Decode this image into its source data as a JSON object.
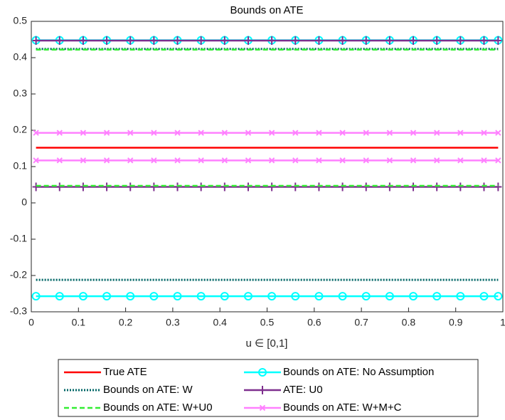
{
  "chart_data": {
    "type": "line",
    "title": "Bounds on ATE",
    "xlabel": "u ∈ [0,1]",
    "x": [
      0.01,
      0.06,
      0.11,
      0.16,
      0.21,
      0.26,
      0.31,
      0.36,
      0.41,
      0.46,
      0.51,
      0.56,
      0.61,
      0.66,
      0.71,
      0.76,
      0.81,
      0.86,
      0.91,
      0.96,
      0.99
    ],
    "xlim": [
      0,
      1
    ],
    "xticks": [
      0,
      0.1,
      0.2,
      0.3,
      0.4,
      0.5,
      0.6,
      0.7,
      0.8,
      0.9,
      1
    ],
    "ylim": [
      -0.3,
      0.5
    ],
    "yticks": [
      -0.3,
      -0.2,
      -0.1,
      0,
      0.1,
      0.2,
      0.3,
      0.4,
      0.5
    ],
    "grid": false,
    "series": [
      {
        "name": "True ATE",
        "color": "#ff0000",
        "linestyle": "solid",
        "marker": "none",
        "values": [
          0.152,
          0.152,
          0.152,
          0.152,
          0.152,
          0.152,
          0.152,
          0.152,
          0.152,
          0.152,
          0.152,
          0.152,
          0.152,
          0.152,
          0.152,
          0.152,
          0.152,
          0.152,
          0.152,
          0.152,
          0.152
        ]
      },
      {
        "name": "Bounds on ATE: No Assumption",
        "color": "#00ffff",
        "linestyle": "solid",
        "marker": "circle",
        "lower": [
          -0.257,
          -0.257,
          -0.257,
          -0.257,
          -0.257,
          -0.257,
          -0.257,
          -0.257,
          -0.257,
          -0.257,
          -0.257,
          -0.257,
          -0.257,
          -0.257,
          -0.257,
          -0.257,
          -0.257,
          -0.257,
          -0.257,
          -0.257,
          -0.257
        ],
        "upper": [
          0.448,
          0.448,
          0.448,
          0.448,
          0.448,
          0.448,
          0.448,
          0.448,
          0.448,
          0.448,
          0.448,
          0.448,
          0.448,
          0.448,
          0.448,
          0.448,
          0.448,
          0.448,
          0.448,
          0.448,
          0.448
        ]
      },
      {
        "name": "Bounds on ATE: W",
        "color": "#006666",
        "linestyle": "dotted",
        "marker": "none",
        "lower": [
          -0.212,
          -0.212,
          -0.212,
          -0.212,
          -0.212,
          -0.212,
          -0.212,
          -0.212,
          -0.212,
          -0.212,
          -0.212,
          -0.212,
          -0.212,
          -0.212,
          -0.212,
          -0.212,
          -0.212,
          -0.212,
          -0.212,
          -0.212,
          -0.212
        ],
        "upper": [
          0.424,
          0.424,
          0.424,
          0.424,
          0.424,
          0.424,
          0.424,
          0.424,
          0.424,
          0.424,
          0.424,
          0.424,
          0.424,
          0.424,
          0.424,
          0.424,
          0.424,
          0.424,
          0.424,
          0.424,
          0.424
        ]
      },
      {
        "name": "ATE: U0",
        "color": "#7e2f8e",
        "linestyle": "solid",
        "marker": "plus",
        "lower": [
          0.044,
          0.044,
          0.044,
          0.044,
          0.044,
          0.044,
          0.044,
          0.044,
          0.044,
          0.044,
          0.044,
          0.044,
          0.044,
          0.044,
          0.044,
          0.044,
          0.044,
          0.044,
          0.044,
          0.044,
          0.044
        ],
        "upper": [
          0.447,
          0.447,
          0.447,
          0.447,
          0.447,
          0.447,
          0.447,
          0.447,
          0.447,
          0.447,
          0.447,
          0.447,
          0.447,
          0.447,
          0.447,
          0.447,
          0.447,
          0.447,
          0.447,
          0.447,
          0.447
        ]
      },
      {
        "name": "Bounds on ATE: W+U0",
        "color": "#33ee33",
        "linestyle": "dashed",
        "marker": "none",
        "lower": [
          0.047,
          0.047,
          0.047,
          0.047,
          0.047,
          0.047,
          0.047,
          0.047,
          0.047,
          0.047,
          0.047,
          0.047,
          0.047,
          0.047,
          0.047,
          0.047,
          0.047,
          0.047,
          0.047,
          0.047,
          0.047
        ],
        "upper": [
          0.422,
          0.422,
          0.422,
          0.422,
          0.422,
          0.422,
          0.422,
          0.422,
          0.422,
          0.422,
          0.422,
          0.422,
          0.422,
          0.422,
          0.422,
          0.422,
          0.422,
          0.422,
          0.422,
          0.422,
          0.422
        ]
      },
      {
        "name": "Bounds on ATE: W+M+C",
        "color": "#ff80ff",
        "linestyle": "solid",
        "marker": "x",
        "lower": [
          0.117,
          0.117,
          0.117,
          0.117,
          0.117,
          0.117,
          0.117,
          0.117,
          0.117,
          0.117,
          0.117,
          0.117,
          0.117,
          0.117,
          0.117,
          0.117,
          0.117,
          0.117,
          0.117,
          0.117,
          0.117
        ],
        "upper": [
          0.193,
          0.193,
          0.193,
          0.193,
          0.193,
          0.193,
          0.193,
          0.193,
          0.193,
          0.193,
          0.193,
          0.193,
          0.193,
          0.193,
          0.193,
          0.193,
          0.193,
          0.193,
          0.193,
          0.193,
          0.193
        ]
      }
    ]
  }
}
